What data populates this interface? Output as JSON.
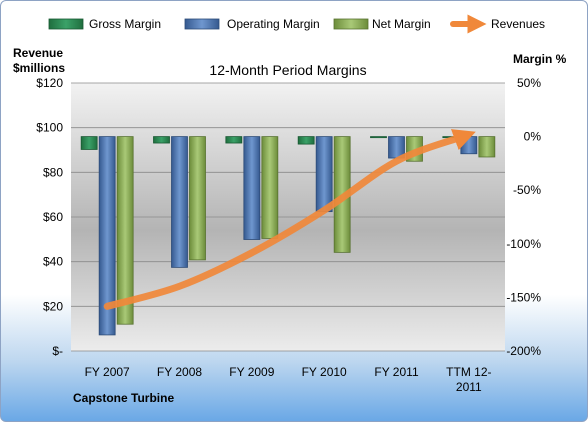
{
  "chart_data": {
    "type": "bar",
    "title": "12-Month Period Margins",
    "company": "Capstone Turbine",
    "left_axis_label": [
      "Revenue",
      "$millions"
    ],
    "right_axis_label": "Margin %",
    "categories": [
      "FY 2007",
      "FY 2008",
      "FY 2009",
      "FY 2010",
      "FY 2011",
      "TTM 12-2011"
    ],
    "category_labels": [
      [
        "FY 2007"
      ],
      [
        "FY 2008"
      ],
      [
        "FY 2009"
      ],
      [
        "FY 2010"
      ],
      [
        "FY 2011"
      ],
      [
        "TTM 12-",
        "2011"
      ]
    ],
    "left_ticks": [
      "$120",
      "$100",
      "$80",
      "$60",
      "$40",
      "$20",
      "$-"
    ],
    "right_ticks": [
      "50%",
      "0%",
      "-50%",
      "-100%",
      "-150%",
      "-200%"
    ],
    "left_range": [
      0,
      120
    ],
    "right_range": [
      -200,
      50
    ],
    "legend_position": "top",
    "series": [
      {
        "name": "Gross Margin",
        "color": "#2e8b57",
        "values": [
          -12,
          -6,
          -6,
          -7,
          -1,
          -1
        ]
      },
      {
        "name": "Operating Margin",
        "color": "#4f7ab8",
        "values": [
          -185,
          -122,
          -96,
          -70,
          -20,
          -16
        ]
      },
      {
        "name": "Net Margin",
        "color": "#8fb25a",
        "values": [
          -175,
          -115,
          -95,
          -108,
          -23,
          -19
        ]
      }
    ],
    "line_series": {
      "name": "Revenues",
      "color": "#f0883a",
      "values": [
        20,
        29,
        44,
        63,
        85,
        97
      ]
    },
    "grid": true
  }
}
